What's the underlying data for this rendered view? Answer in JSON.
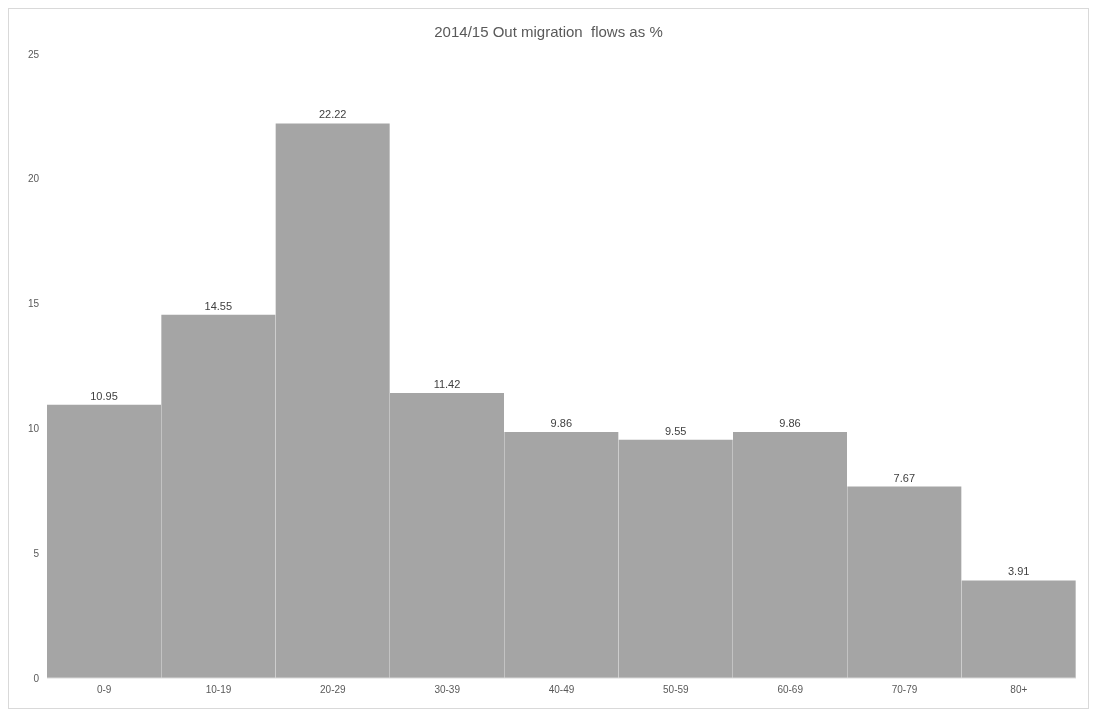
{
  "chart_data": {
    "type": "bar",
    "title": "2014/15 Out migration  flows as %",
    "categories": [
      "0-9",
      "10-19",
      "20-29",
      "30-39",
      "40-49",
      "50-59",
      "60-69",
      "70-79",
      "80+"
    ],
    "values": [
      10.95,
      14.55,
      22.22,
      11.42,
      9.86,
      9.55,
      9.86,
      7.67,
      3.91
    ],
    "color": "#a5a5a5",
    "ylim": [
      0,
      25
    ],
    "yticks": [
      0,
      5,
      10,
      15,
      20,
      25
    ],
    "grid": false,
    "data_labels": true
  }
}
